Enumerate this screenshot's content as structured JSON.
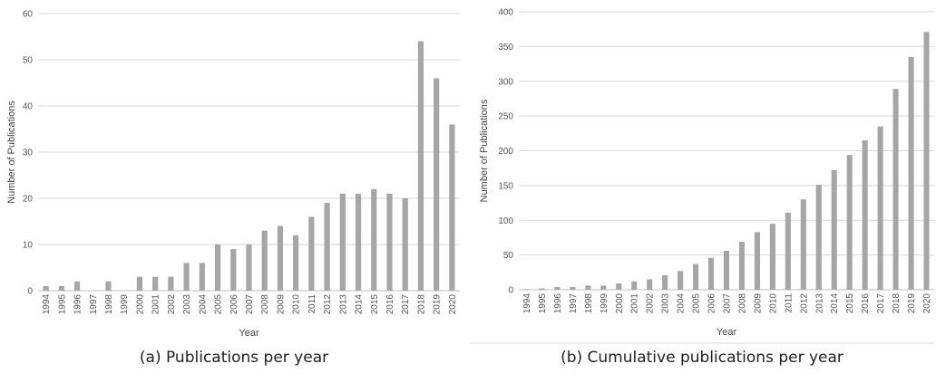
{
  "captions": {
    "a": "(a) Publications per year",
    "b": "(b) Cumulative publications per year"
  },
  "colors": {
    "bar": "#a6a6a6",
    "grid": "#d9d9d9",
    "axis": "#bfbfbf"
  },
  "chart_data": [
    {
      "type": "bar",
      "categories": [
        "1994",
        "1995",
        "1996",
        "1997",
        "1998",
        "1999",
        "2000",
        "2001",
        "2002",
        "2003",
        "2004",
        "2005",
        "2006",
        "2007",
        "2008",
        "2009",
        "2010",
        "2011",
        "2012",
        "2013",
        "2014",
        "2015",
        "2016",
        "2017",
        "2018",
        "2019",
        "2020"
      ],
      "values": [
        1,
        1,
        2,
        0,
        2,
        0,
        3,
        3,
        3,
        6,
        6,
        10,
        9,
        10,
        13,
        14,
        12,
        16,
        19,
        21,
        21,
        22,
        21,
        20,
        54,
        46,
        36
      ],
      "xlabel": "Year",
      "ylabel": "Number of Publications",
      "ylim": [
        0,
        60
      ],
      "yticks": [
        0,
        10,
        20,
        30,
        40,
        50,
        60
      ],
      "grid": true
    },
    {
      "type": "bar",
      "categories": [
        "1994",
        "1995",
        "1996",
        "1997",
        "1998",
        "1999",
        "2000",
        "2001",
        "2002",
        "2003",
        "2004",
        "2005",
        "2006",
        "2007",
        "2008",
        "2009",
        "2010",
        "2011",
        "2012",
        "2013",
        "2014",
        "2015",
        "2016",
        "2017",
        "2018",
        "2019",
        "2020"
      ],
      "values": [
        1,
        2,
        4,
        4,
        6,
        6,
        9,
        12,
        15,
        21,
        27,
        37,
        46,
        56,
        69,
        83,
        95,
        111,
        130,
        151,
        172,
        194,
        215,
        235,
        289,
        335,
        371
      ],
      "xlabel": "Year",
      "ylabel": "Number of Publications",
      "ylim": [
        0,
        400
      ],
      "yticks": [
        0,
        50,
        100,
        150,
        200,
        250,
        300,
        350,
        400
      ],
      "grid": true
    }
  ]
}
